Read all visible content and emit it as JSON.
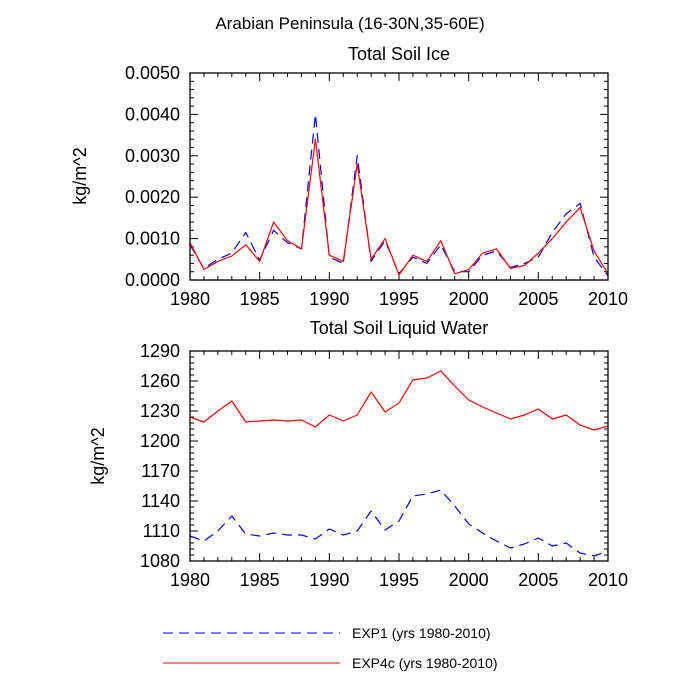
{
  "figure_title": "Arabian Peninsula (16-30N,35-60E)",
  "colors": {
    "exp1": "#0000ff",
    "exp4c": "#ff0000",
    "axis": "#000000"
  },
  "legend": {
    "entries": [
      {
        "label": "EXP1 (yrs 1980-2010)",
        "style": "dashed",
        "color": "#0000ff"
      },
      {
        "label": "EXP4c (yrs 1980-2010)",
        "style": "solid",
        "color": "#ff0000"
      }
    ]
  },
  "chart_data": [
    {
      "type": "line",
      "title": "Total Soil Ice",
      "xlabel": "",
      "ylabel": "kg/m^2",
      "xlim": [
        1980,
        2010
      ],
      "ylim": [
        0,
        0.005
      ],
      "xticks": [
        1980,
        1985,
        1990,
        1995,
        2000,
        2005,
        2010
      ],
      "yticks": [
        0,
        0.001,
        0.002,
        0.003,
        0.004,
        0.005
      ],
      "ytick_labels": [
        "0.0000",
        "0.0010",
        "0.0020",
        "0.0030",
        "0.0040",
        "0.0050"
      ],
      "x": [
        1980,
        1981,
        1982,
        1983,
        1984,
        1985,
        1986,
        1987,
        1988,
        1989,
        1990,
        1991,
        1992,
        1993,
        1994,
        1995,
        1996,
        1997,
        1998,
        1999,
        2000,
        2001,
        2002,
        2003,
        2004,
        2005,
        2006,
        2007,
        2008,
        2009,
        2010
      ],
      "series": [
        {
          "name": "EXP1 (yrs 1980-2010)",
          "style": "dashed",
          "color": "#0000ff",
          "values": [
            0.00085,
            0.00028,
            0.0005,
            0.00065,
            0.00115,
            0.00048,
            0.0012,
            0.0009,
            0.00075,
            0.004,
            0.00055,
            0.0004,
            0.003,
            0.00045,
            0.00095,
            0.00015,
            0.00055,
            0.0004,
            0.00085,
            0.0002,
            0.0002,
            0.0006,
            0.0007,
            0.0003,
            0.0004,
            0.00055,
            0.00115,
            0.0016,
            0.00185,
            0.00055,
            0.0001
          ]
        },
        {
          "name": "EXP4c (yrs 1980-2010)",
          "style": "solid",
          "color": "#ff0000",
          "values": [
            0.0009,
            0.00025,
            0.00045,
            0.00058,
            0.00085,
            0.00045,
            0.0014,
            0.00095,
            0.00075,
            0.0034,
            0.0006,
            0.00045,
            0.0028,
            0.0005,
            0.001,
            0.00012,
            0.0006,
            0.00045,
            0.00095,
            0.00015,
            0.00025,
            0.00065,
            0.00075,
            0.00028,
            0.00035,
            0.00065,
            0.001,
            0.0014,
            0.00175,
            0.0007,
            0.00015
          ]
        }
      ]
    },
    {
      "type": "line",
      "title": "Total Soil Liquid Water",
      "xlabel": "",
      "ylabel": "kg/m^2",
      "xlim": [
        1980,
        2010
      ],
      "ylim": [
        1080,
        1290
      ],
      "xticks": [
        1980,
        1985,
        1990,
        1995,
        2000,
        2005,
        2010
      ],
      "yticks": [
        1080,
        1110,
        1140,
        1170,
        1200,
        1230,
        1260,
        1290
      ],
      "ytick_labels": [
        "1080",
        "1110",
        "1140",
        "1170",
        "1200",
        "1230",
        "1260",
        "1290"
      ],
      "x": [
        1980,
        1981,
        1982,
        1983,
        1984,
        1985,
        1986,
        1987,
        1988,
        1989,
        1990,
        1991,
        1992,
        1993,
        1994,
        1995,
        1996,
        1997,
        1998,
        1999,
        2000,
        2001,
        2002,
        2003,
        2004,
        2005,
        2006,
        2007,
        2008,
        2009,
        2010
      ],
      "series": [
        {
          "name": "EXP1 (yrs 1980-2010)",
          "style": "dashed",
          "color": "#0000ff",
          "values": [
            1105,
            1100,
            1110,
            1125,
            1107,
            1105,
            1108,
            1106,
            1106,
            1102,
            1112,
            1106,
            1110,
            1130,
            1111,
            1120,
            1145,
            1147,
            1151,
            1135,
            1117,
            1108,
            1100,
            1093,
            1097,
            1103,
            1095,
            1098,
            1088,
            1085,
            1090
          ]
        },
        {
          "name": "EXP4c (yrs 1980-2010)",
          "style": "solid",
          "color": "#ff0000",
          "values": [
            1224,
            1219,
            1230,
            1240,
            1219,
            1220,
            1221,
            1220,
            1221,
            1214,
            1226,
            1220,
            1226,
            1249,
            1229,
            1238,
            1261,
            1263,
            1270,
            1255,
            1241,
            1234,
            1228,
            1222,
            1226,
            1232,
            1222,
            1226,
            1216,
            1211,
            1215
          ]
        }
      ]
    }
  ]
}
